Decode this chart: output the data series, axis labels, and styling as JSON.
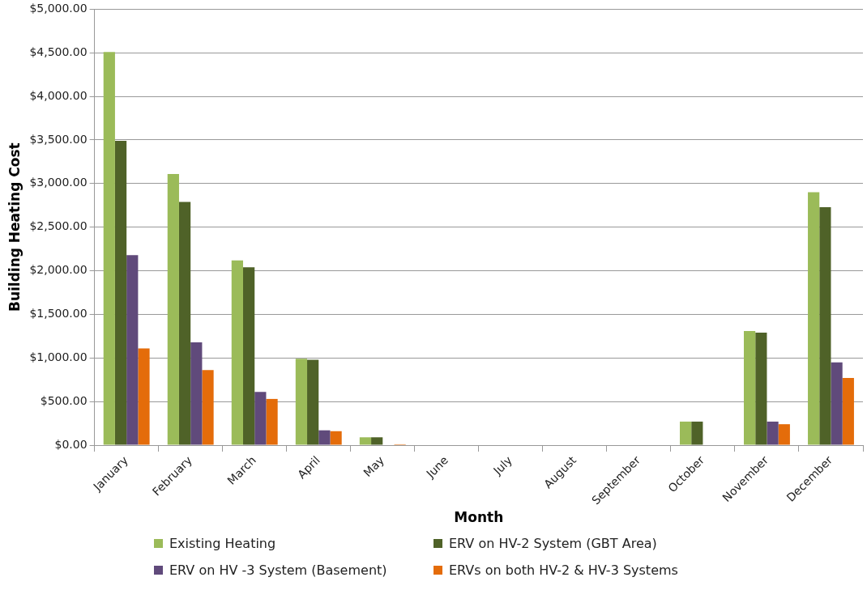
{
  "chart_data": {
    "type": "bar",
    "xlabel": "Month",
    "ylabel": "Building Heating Cost",
    "categories": [
      "January",
      "February",
      "March",
      "April",
      "May",
      "June",
      "July",
      "August",
      "September",
      "October",
      "November",
      "December"
    ],
    "series": [
      {
        "name": "Existing Heating",
        "color": "#9bbb59",
        "values": [
          4510,
          3110,
          2120,
          990,
          90,
          0,
          0,
          0,
          0,
          270,
          1310,
          2900
        ]
      },
      {
        "name": "ERV on HV-2 System (GBT Area)",
        "color": "#4f6228",
        "values": [
          3490,
          2790,
          2040,
          980,
          90,
          0,
          0,
          0,
          0,
          270,
          1290,
          2730
        ]
      },
      {
        "name": "ERV on HV -3 System (Basement)",
        "color": "#604a7b",
        "values": [
          2180,
          1180,
          610,
          170,
          0,
          0,
          0,
          0,
          0,
          0,
          270,
          950
        ]
      },
      {
        "name": "ERVs on both HV-2 & HV-3 Systems",
        "color": "#e46c0a",
        "values": [
          1110,
          860,
          530,
          160,
          10,
          0,
          0,
          0,
          0,
          0,
          240,
          770
        ]
      }
    ],
    "ylim": [
      0,
      5000
    ],
    "yticks": [
      {
        "value": 0,
        "label": "$0.00"
      },
      {
        "value": 500,
        "label": "$500.00"
      },
      {
        "value": 1000,
        "label": "$1,000.00"
      },
      {
        "value": 1500,
        "label": "$1,500.00"
      },
      {
        "value": 2000,
        "label": "$2,000.00"
      },
      {
        "value": 2500,
        "label": "$2,500.00"
      },
      {
        "value": 3000,
        "label": "$3,000.00"
      },
      {
        "value": 3500,
        "label": "$3,500.00"
      },
      {
        "value": 4000,
        "label": "$4,000.00"
      },
      {
        "value": 4500,
        "label": "$4,500.00"
      },
      {
        "value": 5000,
        "label": "$5,000.00"
      }
    ],
    "grid": "y",
    "legend": "bottom"
  }
}
